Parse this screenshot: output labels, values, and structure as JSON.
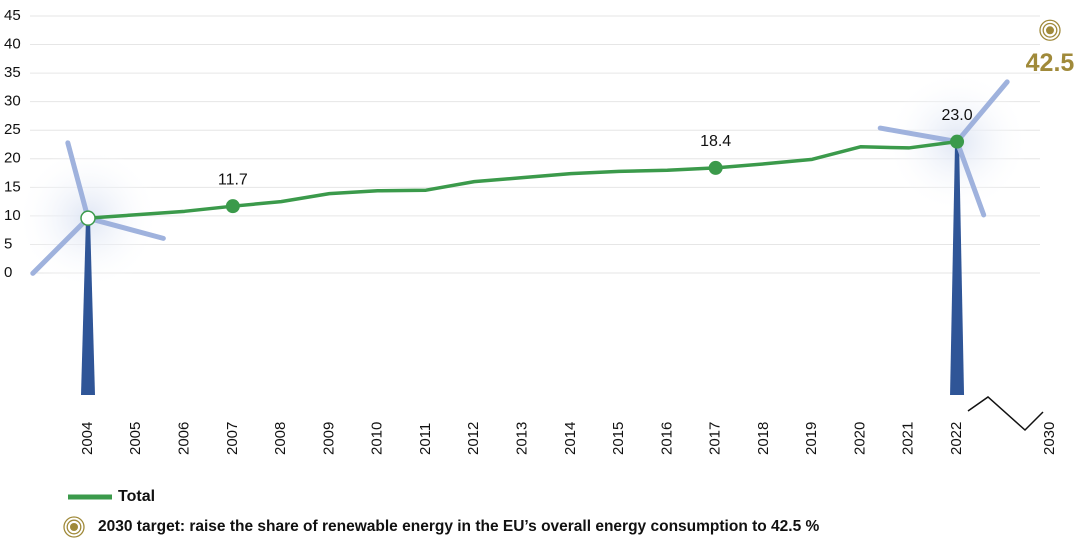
{
  "chart_data": {
    "type": "line",
    "categories": [
      "2004",
      "2005",
      "2006",
      "2007",
      "2008",
      "2009",
      "2010",
      "2011",
      "2012",
      "2013",
      "2014",
      "2015",
      "2016",
      "2017",
      "2018",
      "2019",
      "2020",
      "2021",
      "2022",
      "2030"
    ],
    "series": [
      {
        "name": "Total",
        "color": "#3b9a4b",
        "values": [
          9.6,
          10.2,
          10.8,
          11.7,
          12.5,
          13.9,
          14.4,
          14.5,
          16.0,
          16.7,
          17.4,
          17.8,
          18.0,
          18.4,
          19.1,
          19.9,
          22.1,
          21.9,
          23.0,
          null
        ],
        "value_labels": [
          null,
          null,
          null,
          "11.7",
          null,
          null,
          null,
          null,
          null,
          null,
          null,
          null,
          null,
          "18.4",
          null,
          null,
          null,
          null,
          "23.0",
          null
        ]
      }
    ],
    "target_value": 42.5,
    "target_color": "#a08a3a",
    "target_text": "2030 target: raise the share of renewable energy in the EU’s overall energy consumption to 42.5 %",
    "ylim": [
      0,
      45
    ],
    "yticks": [
      0,
      5,
      10,
      15,
      20,
      25,
      30,
      35,
      40,
      45
    ],
    "grid": true
  }
}
